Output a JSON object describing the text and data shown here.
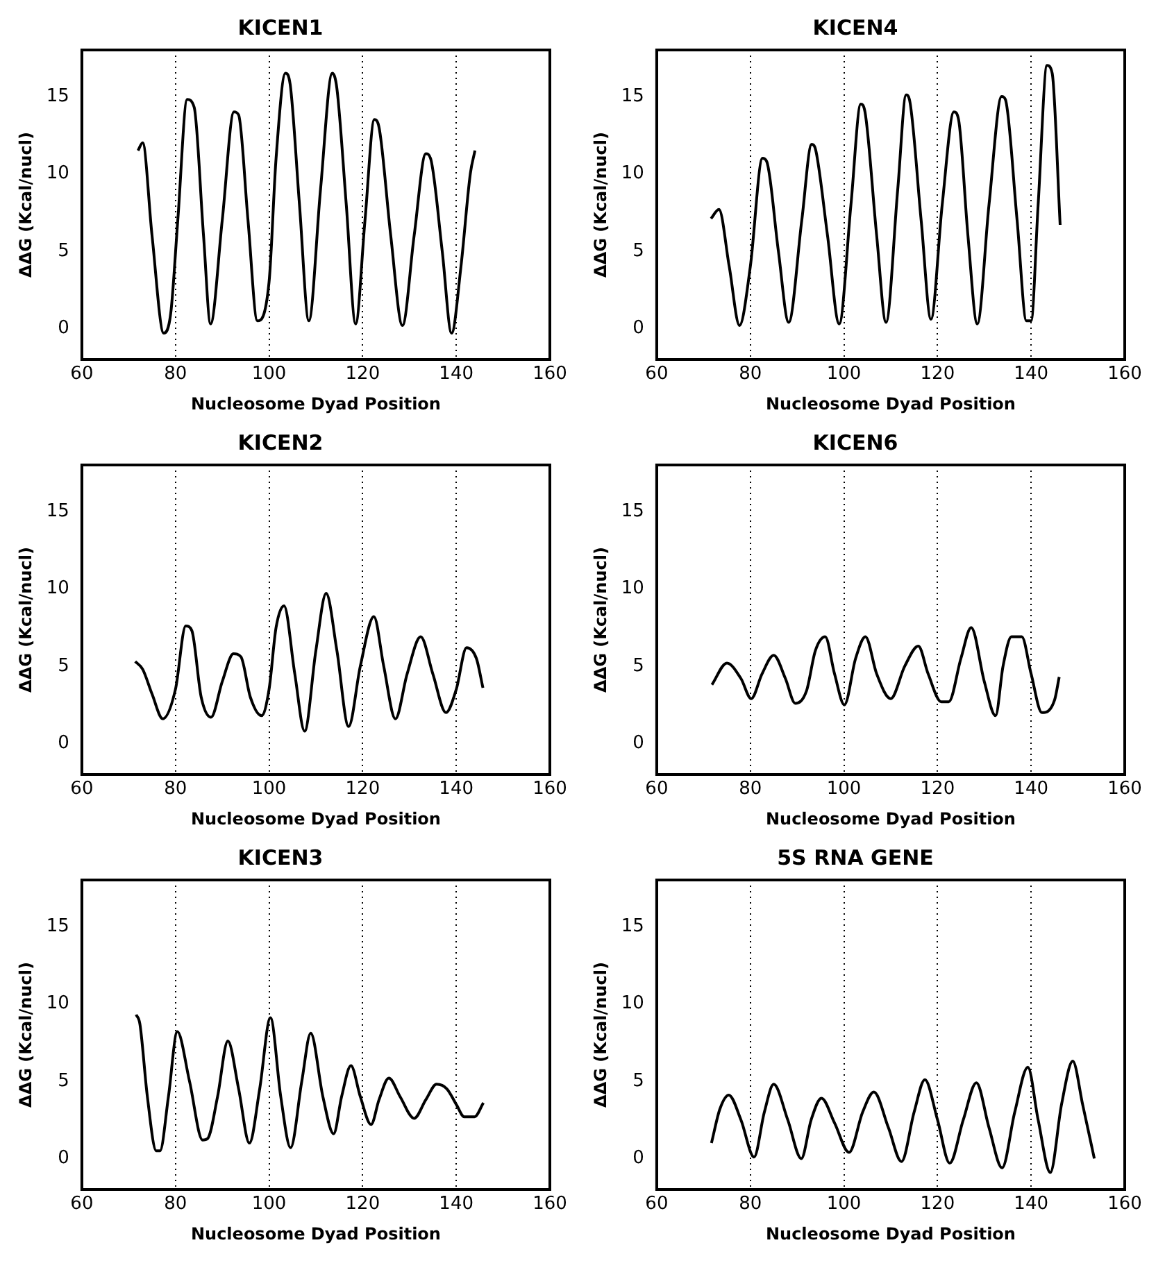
{
  "chart_data": [
    {
      "type": "line",
      "title": "KICEN1",
      "xlabel": "Nucleosome Dyad Position",
      "ylabel": "ΔΔG (Kcal/nucl)",
      "xlim": [
        60,
        160
      ],
      "ylim": [
        -2,
        18
      ],
      "xticks": [
        60,
        80,
        100,
        120,
        140,
        160
      ],
      "yticks": [
        0,
        5,
        10,
        15
      ],
      "grid": "x",
      "series": [
        {
          "color": "#000000",
          "x": [
            72,
            73,
            75,
            77.5,
            79,
            80.5,
            82.5,
            84,
            86,
            87.5,
            90,
            92.5,
            93.5,
            95.5,
            97.5,
            100,
            101.5,
            103.5,
            104.5,
            106.5,
            108.5,
            111,
            113.5,
            114.5,
            116.5,
            118.5,
            120.5,
            122.5,
            123.5,
            126,
            128.5,
            131,
            133.5,
            134.5,
            137,
            139,
            141,
            143,
            144
          ],
          "values": [
            11.5,
            12,
            6,
            -0.3,
            1,
            7,
            14.8,
            14.3,
            6,
            0.3,
            7,
            14,
            13.8,
            7,
            0.5,
            3,
            11,
            16.5,
            15.8,
            8,
            0.5,
            9,
            16.5,
            15.5,
            8,
            0.3,
            7,
            13.5,
            13,
            6,
            0.2,
            6,
            11.3,
            11,
            5,
            -0.3,
            4,
            10,
            11.5
          ]
        }
      ]
    },
    {
      "type": "line",
      "title": "KICEN4",
      "xlabel": "Nucleosome Dyad Position",
      "ylabel": "ΔΔG (Kcal/nucl)",
      "xlim": [
        60,
        160
      ],
      "ylim": [
        -2,
        18
      ],
      "xticks": [
        60,
        80,
        100,
        120,
        140,
        160
      ],
      "yticks": [
        0,
        5,
        10,
        15
      ],
      "grid": "x",
      "series": [
        {
          "color": "#000000",
          "x": [
            71.6,
            73.3,
            75.5,
            77.7,
            80,
            82.6,
            83.5,
            86,
            88.2,
            91,
            93.1,
            94,
            96.5,
            99,
            101.5,
            103.6,
            104.5,
            107,
            109,
            111.5,
            113.3,
            114,
            116.5,
            118.6,
            121,
            123.5,
            124.5,
            126.5,
            128.5,
            131,
            133.7,
            134.5,
            137,
            139,
            140,
            141.5,
            143.4,
            144.5,
            146.2
          ],
          "values": [
            7.1,
            7.7,
            4,
            0.2,
            4,
            11,
            10.8,
            5,
            0.4,
            7,
            11.9,
            11.5,
            6,
            0.3,
            8,
            14.5,
            14,
            6,
            0.4,
            9,
            15.1,
            14.8,
            7,
            0.6,
            8,
            14,
            13.5,
            6,
            0.3,
            8,
            15,
            14.8,
            7,
            0.5,
            0.5,
            8,
            17,
            16.5,
            6.7
          ]
        }
      ]
    },
    {
      "type": "line",
      "title": "KICEN2",
      "xlabel": "Nucleosome Dyad Position",
      "ylabel": "ΔΔG (Kcal/nucl)",
      "xlim": [
        60,
        160
      ],
      "ylim": [
        -2,
        18
      ],
      "xticks": [
        60,
        80,
        100,
        120,
        140,
        160
      ],
      "yticks": [
        0,
        5,
        10,
        15
      ],
      "grid": "x",
      "series": [
        {
          "color": "#000000",
          "x": [
            71.4,
            73,
            75,
            77.3,
            80,
            82.2,
            83.5,
            85.5,
            87.6,
            90,
            92.4,
            94,
            96,
            98.4,
            100,
            101.5,
            103.2,
            105.5,
            107.6,
            110,
            112.2,
            114.5,
            117,
            119.5,
            122.4,
            124.5,
            127,
            129.5,
            132.4,
            135,
            137.8,
            140,
            142.2,
            144.3,
            145.7
          ],
          "values": [
            5.3,
            4.8,
            3.2,
            1.6,
            3.5,
            7.6,
            7.3,
            3,
            1.7,
            4,
            5.8,
            5.6,
            3,
            1.8,
            3.5,
            7.5,
            8.9,
            4.5,
            0.8,
            6,
            9.7,
            6,
            1.1,
            5,
            8.2,
            5,
            1.6,
            4.5,
            6.9,
            4.5,
            2,
            3.5,
            6.2,
            5.5,
            3.6
          ]
        }
      ]
    },
    {
      "type": "line",
      "title": "KICEN6",
      "xlabel": "Nucleosome Dyad Position",
      "ylabel": "ΔΔG (Kcal/nucl)",
      "xlim": [
        60,
        160
      ],
      "ylim": [
        -2,
        18
      ],
      "xticks": [
        60,
        80,
        100,
        120,
        140,
        160
      ],
      "yticks": [
        0,
        5,
        10,
        15
      ],
      "grid": "x",
      "series": [
        {
          "color": "#000000",
          "x": [
            71.8,
            75,
            78,
            80.2,
            82.5,
            85,
            87.5,
            89.6,
            92,
            93.9,
            96,
            98,
            100.1,
            102.5,
            104.6,
            107,
            110,
            113,
            115.9,
            118,
            120.8,
            122.4,
            125,
            127.2,
            130,
            132.4,
            134,
            135.8,
            138,
            140,
            142.3,
            145,
            146
          ],
          "values": [
            3.8,
            5.2,
            4.2,
            2.9,
            4.5,
            5.7,
            4.2,
            2.6,
            3.4,
            6,
            6.9,
            4.5,
            2.5,
            5.5,
            6.9,
            4.5,
            2.9,
            5,
            6.3,
            4.5,
            2.7,
            2.7,
            5.5,
            7.5,
            4,
            1.8,
            5,
            6.9,
            6.9,
            4.5,
            2,
            2.8,
            4.3
          ]
        }
      ]
    },
    {
      "type": "line",
      "title": "KICEN3",
      "xlabel": "Nucleosome Dyad Position",
      "ylabel": "ΔΔG (Kcal/nucl)",
      "xlim": [
        60,
        160
      ],
      "ylim": [
        -2,
        18
      ],
      "xticks": [
        60,
        80,
        100,
        120,
        140,
        160
      ],
      "yticks": [
        0,
        5,
        10,
        15
      ],
      "grid": "x",
      "series": [
        {
          "color": "#000000",
          "x": [
            71.6,
            72.4,
            74,
            75.9,
            76.7,
            78.5,
            80.4,
            83,
            85.8,
            86.9,
            89,
            91.2,
            93.5,
            95.8,
            98,
            100.3,
            102.5,
            104.6,
            107,
            108.9,
            111.5,
            113.8,
            115.5,
            117.5,
            119.5,
            121.8,
            123.5,
            125.6,
            128,
            131,
            133.5,
            135.8,
            138,
            140,
            141.7,
            143.9,
            145.8
          ],
          "values": [
            9.3,
            8.7,
            4,
            0.5,
            0.5,
            4,
            8.2,
            5,
            1.2,
            1.3,
            4,
            7.6,
            4.5,
            1,
            4.5,
            9.1,
            4,
            0.7,
            5,
            8.1,
            4,
            1.6,
            4,
            6,
            4,
            2.2,
            3.8,
            5.2,
            4,
            2.6,
            3.8,
            4.8,
            4.5,
            3.5,
            2.7,
            2.7,
            3.6
          ]
        }
      ]
    },
    {
      "type": "line",
      "title": "5S RNA GENE",
      "xlabel": "Nucleosome Dyad Position",
      "ylabel": "ΔΔG (Kcal/nucl)",
      "xlim": [
        60,
        160
      ],
      "ylim": [
        -2,
        18
      ],
      "xticks": [
        60,
        80,
        100,
        120,
        140,
        160
      ],
      "yticks": [
        0,
        5,
        10,
        15
      ],
      "grid": "x",
      "series": [
        {
          "color": "#000000",
          "x": [
            71.7,
            73.5,
            75.4,
            78,
            80.8,
            83,
            85,
            88,
            90.9,
            93,
            95.2,
            98,
            101.1,
            104,
            106.4,
            109.5,
            112.3,
            115,
            117.3,
            120,
            122.6,
            125.5,
            128.3,
            131,
            133.8,
            136.5,
            139.3,
            141.5,
            144.1,
            146.5,
            148.9,
            151,
            153.5
          ],
          "values": [
            1,
            3.2,
            4.1,
            2.5,
            0.1,
            3,
            4.8,
            2.5,
            0,
            2.5,
            3.9,
            2.3,
            0.4,
            3,
            4.3,
            2,
            -0.2,
            3,
            5.1,
            2.5,
            -0.3,
            2.5,
            4.9,
            2,
            -0.6,
            3,
            5.9,
            2.5,
            -0.9,
            3.5,
            6.3,
            3.5,
            0
          ]
        }
      ]
    }
  ]
}
